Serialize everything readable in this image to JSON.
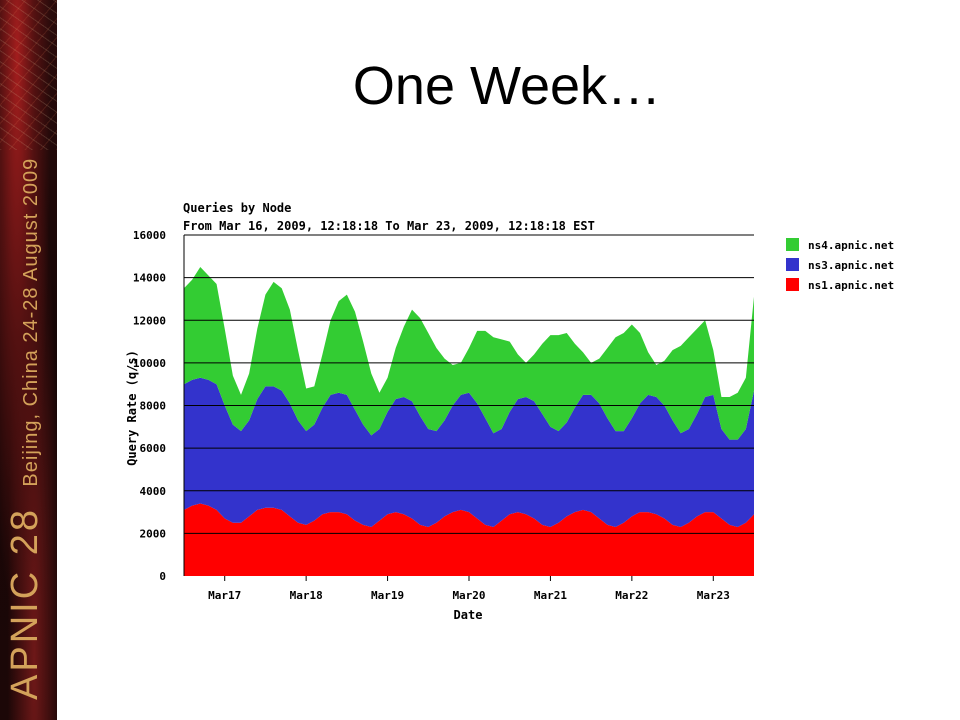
{
  "slide": {
    "title": "One Week…",
    "banner": {
      "event": "APNIC 28",
      "location_date": "Beijing, China  24-28 August 2009"
    }
  },
  "chart_data": {
    "type": "area",
    "title": "Queries by Node",
    "subtitle": "From Mar 16, 2009, 12:18:18 To Mar 23, 2009, 12:18:18 EST",
    "xlabel": "Date",
    "ylabel": "Query Rate (q/s)",
    "ylim": [
      0,
      16000
    ],
    "yticks": [
      0,
      2000,
      4000,
      6000,
      8000,
      10000,
      12000,
      14000,
      16000
    ],
    "xticks": [
      "Mar17",
      "Mar18",
      "Mar19",
      "Mar20",
      "Mar21",
      "Mar22",
      "Mar23"
    ],
    "x_range_days": [
      16.5,
      23.5
    ],
    "stacked": true,
    "legend_position": "right",
    "grid": "horizontal",
    "x_days": [
      16.5,
      16.6,
      16.7,
      16.8,
      16.9,
      17.0,
      17.1,
      17.2,
      17.3,
      17.4,
      17.5,
      17.6,
      17.7,
      17.8,
      17.9,
      18.0,
      18.1,
      18.2,
      18.3,
      18.4,
      18.5,
      18.6,
      18.7,
      18.8,
      18.9,
      19.0,
      19.1,
      19.2,
      19.3,
      19.4,
      19.5,
      19.6,
      19.7,
      19.8,
      19.9,
      20.0,
      20.1,
      20.2,
      20.3,
      20.4,
      20.5,
      20.6,
      20.7,
      20.8,
      20.9,
      21.0,
      21.1,
      21.2,
      21.3,
      21.4,
      21.5,
      21.6,
      21.7,
      21.8,
      21.9,
      22.0,
      22.1,
      22.2,
      22.3,
      22.4,
      22.5,
      22.6,
      22.7,
      22.8,
      22.9,
      23.0,
      23.1,
      23.2,
      23.3,
      23.4,
      23.5
    ],
    "series": [
      {
        "name": "ns1.apnic.net",
        "color": "#ff0000",
        "values": [
          3100,
          3300,
          3400,
          3300,
          3100,
          2700,
          2500,
          2500,
          2800,
          3100,
          3200,
          3200,
          3100,
          2800,
          2500,
          2400,
          2600,
          2900,
          3000,
          3000,
          2900,
          2600,
          2400,
          2300,
          2600,
          2900,
          3000,
          2900,
          2700,
          2400,
          2300,
          2500,
          2800,
          3000,
          3100,
          3000,
          2700,
          2400,
          2300,
          2600,
          2900,
          3000,
          2900,
          2700,
          2400,
          2300,
          2500,
          2800,
          3000,
          3100,
          3000,
          2700,
          2400,
          2300,
          2500,
          2800,
          3000,
          3000,
          2900,
          2700,
          2400,
          2300,
          2500,
          2800,
          3000,
          3000,
          2700,
          2400,
          2300,
          2500,
          2900
        ]
      },
      {
        "name": "ns3.apnic.net",
        "color": "#3333cc",
        "values": [
          5900,
          5900,
          5900,
          5900,
          5900,
          5300,
          4600,
          4300,
          4500,
          5200,
          5700,
          5700,
          5600,
          5300,
          4800,
          4400,
          4500,
          5000,
          5500,
          5600,
          5600,
          5200,
          4700,
          4300,
          4300,
          4800,
          5300,
          5500,
          5500,
          5100,
          4600,
          4300,
          4500,
          5000,
          5400,
          5600,
          5400,
          5000,
          4400,
          4300,
          4800,
          5300,
          5500,
          5500,
          5200,
          4700,
          4300,
          4400,
          4900,
          5400,
          5500,
          5400,
          5000,
          4500,
          4300,
          4600,
          5100,
          5500,
          5500,
          5300,
          4900,
          4400,
          4400,
          4800,
          5400,
          5500,
          4200,
          4000,
          4100,
          4400,
          5800
        ]
      },
      {
        "name": "ns4.apnic.net",
        "color": "#33cc33",
        "values": [
          4500,
          4700,
          5200,
          4900,
          4700,
          3600,
          2300,
          1700,
          2200,
          3300,
          4300,
          4900,
          4800,
          4400,
          3300,
          2000,
          1800,
          2500,
          3500,
          4300,
          4700,
          4600,
          3900,
          2900,
          1700,
          1600,
          2400,
          3300,
          4300,
          4600,
          4500,
          3900,
          2900,
          1900,
          1500,
          2100,
          3400,
          4100,
          4500,
          4200,
          3300,
          2100,
          1600,
          2200,
          3300,
          4300,
          4500,
          4200,
          3000,
          2000,
          1500,
          2100,
          3300,
          4400,
          4600,
          4400,
          3300,
          2000,
          1500,
          2100,
          3300,
          4100,
          4300,
          4000,
          3600,
          2100,
          1500,
          2000,
          2200,
          2400,
          4400
        ]
      }
    ],
    "colors": {
      "grid": "#000000",
      "background": "#ffffff"
    }
  }
}
